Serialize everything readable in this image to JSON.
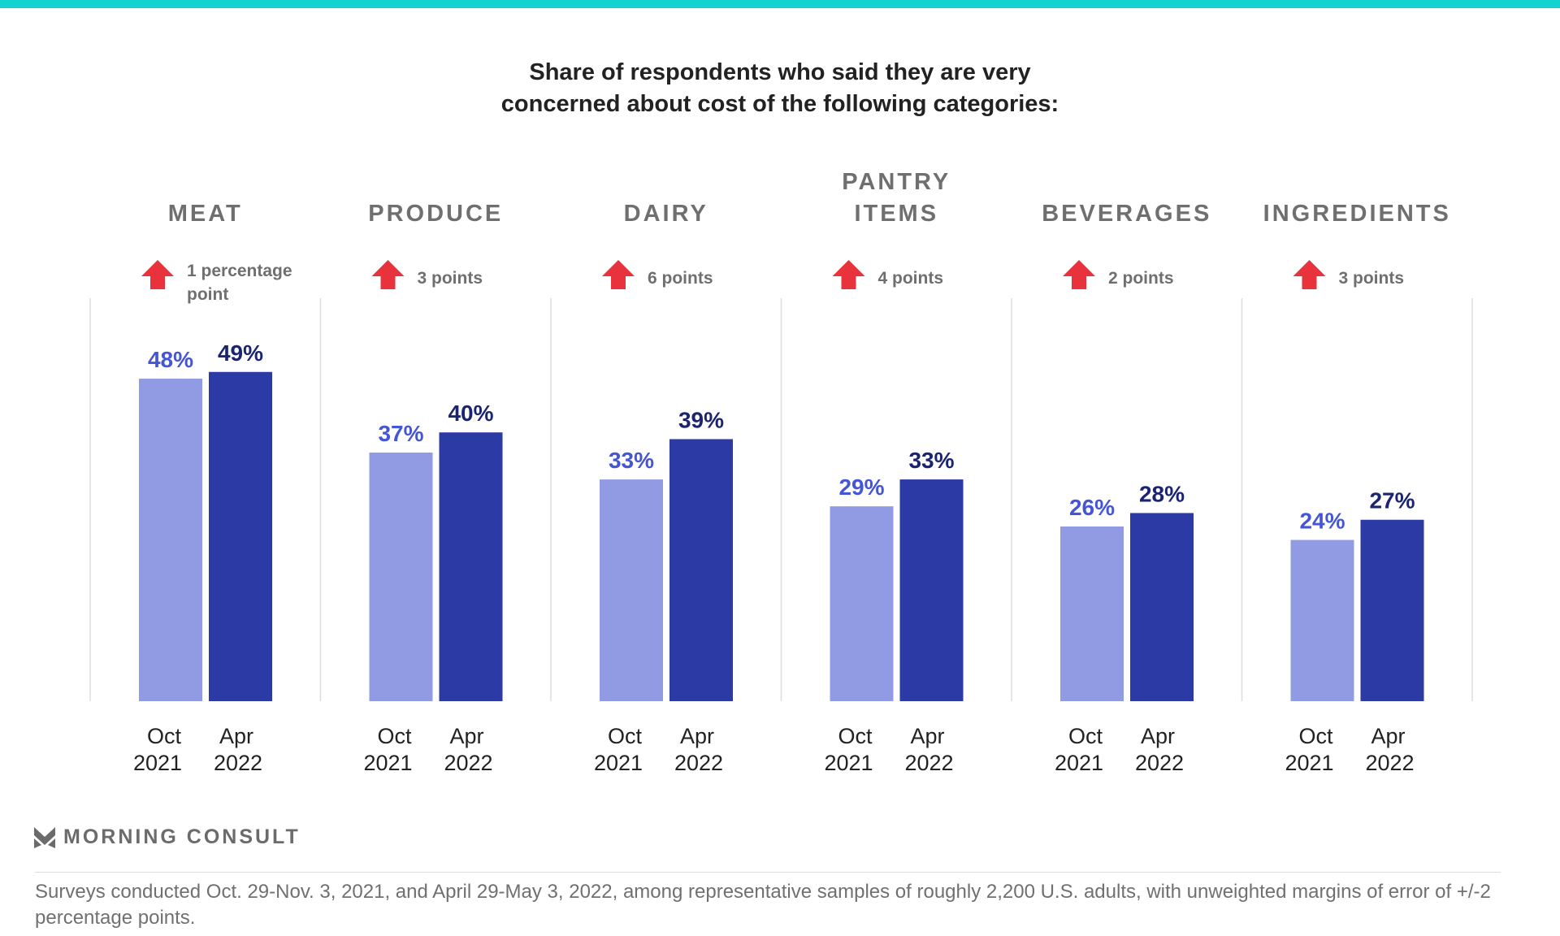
{
  "title_lines": [
    "Share of respondents who said they are very",
    "concerned about cost of the following categories:"
  ],
  "chart_data": {
    "type": "bar",
    "ylim": [
      0,
      55
    ],
    "grid": false,
    "categories": [
      {
        "label": [
          "MEAT"
        ],
        "change": [
          "1 percentage",
          "point"
        ],
        "x_labels": [
          [
            "Oct",
            "2021"
          ],
          [
            "Apr",
            "2022"
          ]
        ],
        "values": [
          48,
          49
        ],
        "value_labels": [
          "48%",
          "49%"
        ]
      },
      {
        "label": [
          "PRODUCE"
        ],
        "change": [
          "3 points"
        ],
        "x_labels": [
          [
            "Oct",
            "2021"
          ],
          [
            "Apr",
            "2022"
          ]
        ],
        "values": [
          37,
          40
        ],
        "value_labels": [
          "37%",
          "40%"
        ]
      },
      {
        "label": [
          "DAIRY"
        ],
        "change": [
          "6 points"
        ],
        "x_labels": [
          [
            "Oct",
            "2021"
          ],
          [
            "Apr",
            "2022"
          ]
        ],
        "values": [
          33,
          39
        ],
        "value_labels": [
          "33%",
          "39%"
        ]
      },
      {
        "label": [
          "PANTRY",
          "ITEMS"
        ],
        "change": [
          "4 points"
        ],
        "x_labels": [
          [
            "Oct",
            "2021"
          ],
          [
            "Apr",
            "2022"
          ]
        ],
        "values": [
          29,
          33
        ],
        "value_labels": [
          "29%",
          "33%"
        ]
      },
      {
        "label": [
          "BEVERAGES"
        ],
        "change": [
          "2 points"
        ],
        "x_labels": [
          [
            "Oct",
            "2021"
          ],
          [
            "Apr",
            "2022"
          ]
        ],
        "values": [
          26,
          28
        ],
        "value_labels": [
          "26%",
          "28%"
        ]
      },
      {
        "label": [
          "INGREDIENTS"
        ],
        "change": [
          "3 points"
        ],
        "x_labels": [
          [
            "Oct",
            "2021"
          ],
          [
            "Apr",
            "2022"
          ]
        ],
        "values": [
          24,
          27
        ],
        "value_labels": [
          "24%",
          "27%"
        ]
      }
    ],
    "series_colors": [
      "#919be3",
      "#2c3aa5"
    ],
    "value_label_colors": [
      "#4455d6",
      "#1b2470"
    ],
    "change_icon": "arrow-up-icon",
    "change_color": "#e8323c"
  },
  "brand": {
    "name": "MORNING CONSULT",
    "accent": "#12d3cf"
  },
  "footnote": "Surveys conducted Oct. 29-Nov. 3, 2021, and April 29-May 3, 2022, among representative samples of roughly 2,200 U.S. adults, with unweighted margins of error of +/-2 percentage points."
}
